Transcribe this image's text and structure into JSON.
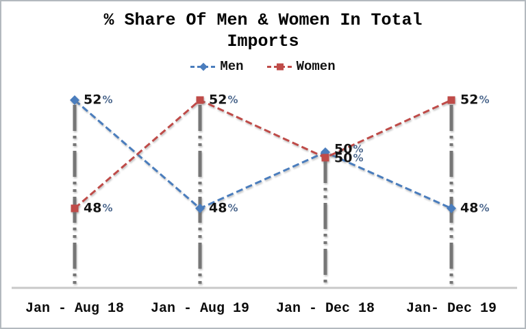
{
  "frame": {
    "background": "#ffffff",
    "border_color": "#b3b9be"
  },
  "chart_data": {
    "type": "line",
    "title": "% Share Of Men & Women In Total Imports",
    "categories": [
      "Jan - Aug 18",
      "Jan - Aug 19",
      "Jan - Dec 18",
      "Jan- Dec 19"
    ],
    "series": [
      {
        "name": "Men",
        "marker": "diamond",
        "color": "#4a7dbd",
        "values": [
          52,
          48,
          50,
          48
        ]
      },
      {
        "name": "Women",
        "marker": "square",
        "color": "#bf4b48",
        "values": [
          48,
          52,
          50,
          52
        ]
      }
    ],
    "unit": "%",
    "data_labels": true,
    "legend_position": "top",
    "grid": false,
    "droplines": true,
    "line_style": "dashed",
    "value_range_shown": [
      48,
      52
    ]
  },
  "style": {
    "dropline_color": "#767676",
    "axis_color": "#c8c8c8",
    "label_color": "#141414",
    "percent_color": "#4f6a8f",
    "title_color": "#000000"
  }
}
